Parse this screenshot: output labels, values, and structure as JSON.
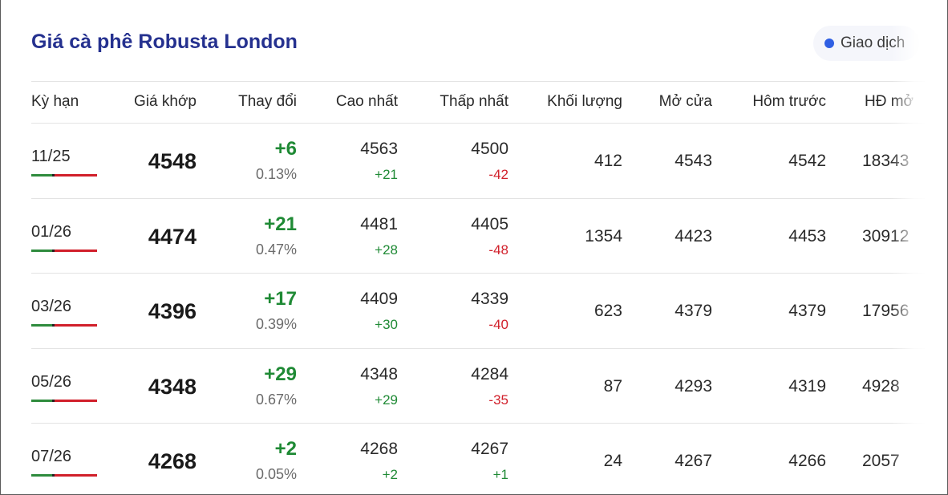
{
  "title": "Giá cà phê Robusta London",
  "status": {
    "label": "Giao dịch",
    "color": "#2f5fe3"
  },
  "columns": {
    "term": "Kỳ hạn",
    "price": "Giá khớp",
    "change": "Thay đổi",
    "high": "Cao nhất",
    "low": "Thấp nhất",
    "volume": "Khối lượng",
    "open": "Mở cửa",
    "prev": "Hôm trước",
    "oi": "HĐ mở"
  },
  "rows": [
    {
      "term": "11/25",
      "price": "4548",
      "change": "+6",
      "pct": "0.13%",
      "high": "4563",
      "high_diff": "+21",
      "low": "4500",
      "low_diff": "-42",
      "volume": "412",
      "open": "4543",
      "prev": "4542",
      "oi": "18343"
    },
    {
      "term": "01/26",
      "price": "4474",
      "change": "+21",
      "pct": "0.47%",
      "high": "4481",
      "high_diff": "+28",
      "low": "4405",
      "low_diff": "-48",
      "volume": "1354",
      "open": "4423",
      "prev": "4453",
      "oi": "30912"
    },
    {
      "term": "03/26",
      "price": "4396",
      "change": "+17",
      "pct": "0.39%",
      "high": "4409",
      "high_diff": "+30",
      "low": "4339",
      "low_diff": "-40",
      "volume": "623",
      "open": "4379",
      "prev": "4379",
      "oi": "17956"
    },
    {
      "term": "05/26",
      "price": "4348",
      "change": "+29",
      "pct": "0.67%",
      "high": "4348",
      "high_diff": "+29",
      "low": "4284",
      "low_diff": "-35",
      "volume": "87",
      "open": "4293",
      "prev": "4319",
      "oi": "4928"
    },
    {
      "term": "07/26",
      "price": "4268",
      "change": "+2",
      "pct": "0.05%",
      "high": "4268",
      "high_diff": "+2",
      "low": "4267",
      "low_diff": "+1",
      "volume": "24",
      "open": "4267",
      "prev": "4266",
      "oi": "2057"
    }
  ],
  "colors": {
    "title": "#25318f",
    "positive": "#1f8a35",
    "negative": "#d11f2a"
  }
}
